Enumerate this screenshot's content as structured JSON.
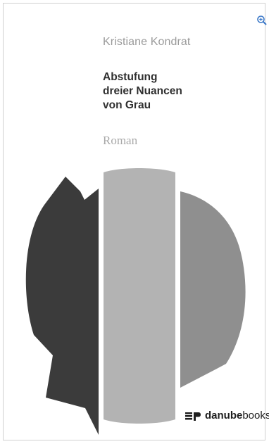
{
  "cover": {
    "author": "Kristiane Kondrat",
    "title_lines": [
      "Abstufung",
      "dreier Nuancen",
      "von Grau"
    ],
    "genre": "Roman",
    "publisher": {
      "name_bold": "danube",
      "name_light": "books"
    }
  },
  "colors": {
    "dark_shape": "#3b3b3b",
    "light_shape": "#b3b3b3",
    "mid_shape": "#8f8f8f",
    "author_text": "#9a9a9a",
    "title_text": "#2f2f2f",
    "genre_text": "#a8a8a8"
  },
  "icons": {
    "zoom": "zoom-in-icon",
    "publisher_logo": "publisher-logo-icon"
  }
}
